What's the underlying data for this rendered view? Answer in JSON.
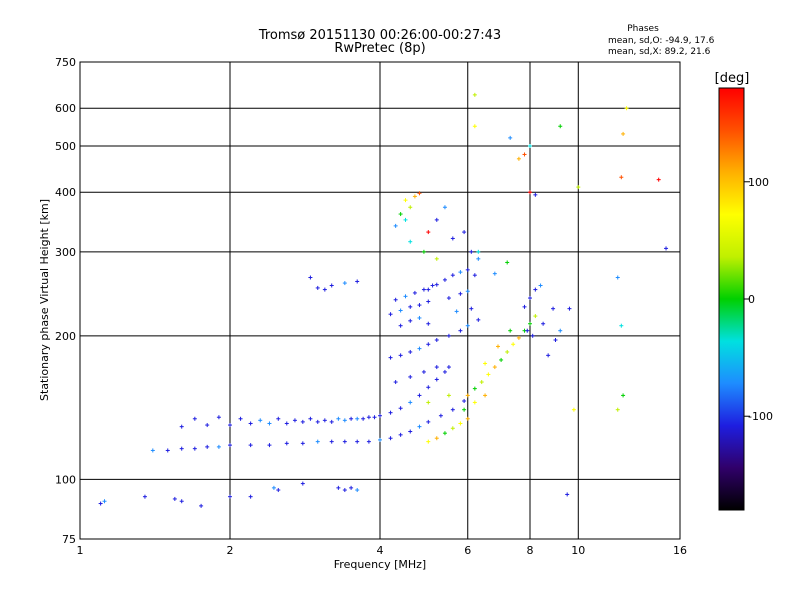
{
  "chart_data": {
    "type": "scatter",
    "title": "Tromsø 20151130 00:26:00-00:27:43",
    "subtitle": "RwPretec (8p)",
    "xlabel": "Frequency [MHz]",
    "ylabel": "Stationary phase Virtual Height [km]",
    "x_scale": "log",
    "y_scale": "log",
    "xlim": [
      1,
      16
    ],
    "ylim": [
      75,
      750
    ],
    "x_ticks": [
      1,
      2,
      4,
      6,
      8,
      10,
      16
    ],
    "y_ticks": [
      75,
      100,
      200,
      300,
      400,
      500,
      600,
      750
    ],
    "grid": true,
    "legend": "top-right",
    "stats": {
      "heading": "Phases",
      "line_o": "mean, sd,O: -94.9, 17.6",
      "line_x": "mean, sd,X:  89.2, 21.6"
    },
    "colorbar": {
      "label": "[deg]",
      "range": [
        -180,
        180
      ],
      "ticks": [
        100,
        0,
        -100
      ],
      "colors": [
        "#000000",
        "#30006a",
        "#1e1ee0",
        "#1e8cff",
        "#00e0e0",
        "#00d000",
        "#c0f000",
        "#ffff00",
        "#ffb000",
        "#ff5000",
        "#ff0000"
      ]
    },
    "series": [
      {
        "points": [
          [
            1.1,
            89
          ],
          [
            1.12,
            90
          ],
          [
            1.35,
            92
          ],
          [
            1.6,
            90
          ],
          [
            1.75,
            88
          ],
          [
            2,
            92
          ],
          [
            2.45,
            96
          ],
          [
            2.5,
            95
          ],
          [
            2.8,
            98
          ],
          [
            3.3,
            96
          ],
          [
            3.4,
            95
          ],
          [
            3.5,
            96
          ],
          [
            3.6,
            95
          ],
          [
            2.2,
            92
          ],
          [
            1.55,
            91
          ]
        ]
      },
      {
        "points": [
          [
            1.4,
            115
          ],
          [
            1.5,
            115
          ],
          [
            1.6,
            116
          ],
          [
            1.7,
            116
          ],
          [
            1.8,
            117
          ],
          [
            1.9,
            117
          ],
          [
            2,
            118
          ],
          [
            2.2,
            118
          ],
          [
            2.4,
            118
          ],
          [
            2.6,
            119
          ],
          [
            2.8,
            119
          ],
          [
            3,
            120
          ],
          [
            3.2,
            120
          ],
          [
            3.4,
            120
          ],
          [
            3.6,
            120
          ],
          [
            3.8,
            120
          ],
          [
            4,
            121
          ],
          [
            4.2,
            122
          ],
          [
            4.4,
            124
          ],
          [
            4.6,
            126
          ],
          [
            4.8,
            129
          ],
          [
            5,
            132
          ],
          [
            5.3,
            136
          ],
          [
            5.6,
            140
          ],
          [
            5.9,
            146
          ]
        ]
      },
      {
        "points": [
          [
            1.6,
            129
          ],
          [
            1.8,
            130
          ],
          [
            2,
            130
          ],
          [
            2.2,
            131
          ],
          [
            2.4,
            131
          ],
          [
            2.6,
            131
          ],
          [
            2.8,
            132
          ],
          [
            3,
            132
          ],
          [
            3.2,
            132
          ],
          [
            3.4,
            133
          ],
          [
            3.6,
            134
          ],
          [
            3.8,
            135
          ],
          [
            4,
            136
          ],
          [
            4.2,
            138
          ],
          [
            4.4,
            141
          ],
          [
            4.6,
            145
          ],
          [
            4.8,
            150
          ],
          [
            5,
            156
          ],
          [
            5.2,
            162
          ],
          [
            5.4,
            168
          ],
          [
            5.5,
            172
          ]
        ]
      },
      {
        "points": [
          [
            1.7,
            134
          ],
          [
            1.9,
            135
          ],
          [
            2.1,
            134
          ],
          [
            2.3,
            133
          ],
          [
            2.5,
            134
          ],
          [
            2.7,
            133
          ],
          [
            2.9,
            134
          ],
          [
            3.1,
            133
          ],
          [
            3.3,
            134
          ],
          [
            3.5,
            134
          ],
          [
            3.7,
            134
          ],
          [
            3.9,
            135
          ]
        ]
      },
      {
        "points": [
          [
            3.0,
            252
          ],
          [
            3.2,
            255
          ],
          [
            3.4,
            258
          ],
          [
            3.6,
            260
          ],
          [
            2.9,
            265
          ],
          [
            3.1,
            250
          ]
        ]
      },
      {
        "points": [
          [
            4.2,
            222
          ],
          [
            4.4,
            226
          ],
          [
            4.6,
            230
          ],
          [
            4.8,
            232
          ],
          [
            5.0,
            236
          ],
          [
            4.3,
            238
          ],
          [
            4.5,
            242
          ],
          [
            4.7,
            246
          ],
          [
            4.9,
            250
          ],
          [
            5.1,
            255
          ],
          [
            4.4,
            210
          ],
          [
            4.6,
            215
          ],
          [
            4.8,
            218
          ],
          [
            5.0,
            212
          ]
        ]
      },
      {
        "points": [
          [
            4.3,
            340
          ],
          [
            4.5,
            350
          ],
          [
            4.4,
            360
          ],
          [
            4.6,
            372
          ],
          [
            4.5,
            385
          ],
          [
            4.7,
            392
          ],
          [
            4.8,
            398
          ],
          [
            5.0,
            330
          ],
          [
            5.2,
            350
          ],
          [
            5.4,
            372
          ],
          [
            4.6,
            315
          ],
          [
            4.9,
            300
          ],
          [
            5.2,
            290
          ]
        ]
      },
      {
        "points": [
          [
            5.0,
            250
          ],
          [
            5.2,
            256
          ],
          [
            5.4,
            262
          ],
          [
            5.6,
            268
          ],
          [
            5.8,
            272
          ],
          [
            6.0,
            275
          ],
          [
            6.2,
            268
          ],
          [
            5.5,
            240
          ],
          [
            5.8,
            245
          ],
          [
            6.0,
            248
          ],
          [
            5.7,
            225
          ],
          [
            6.1,
            228
          ],
          [
            5.6,
            320
          ],
          [
            5.9,
            330
          ],
          [
            6.1,
            300
          ],
          [
            6.3,
            290
          ]
        ]
      },
      {
        "points": [
          [
            4.2,
            180
          ],
          [
            4.4,
            182
          ],
          [
            4.6,
            185
          ],
          [
            4.8,
            188
          ],
          [
            5.0,
            192
          ],
          [
            5.2,
            196
          ],
          [
            5.5,
            200
          ],
          [
            5.8,
            205
          ],
          [
            6.0,
            210
          ],
          [
            6.3,
            216
          ],
          [
            4.3,
            160
          ],
          [
            4.6,
            164
          ],
          [
            4.9,
            168
          ],
          [
            5.2,
            172
          ]
        ]
      },
      {
        "points": [
          [
            6.0,
            150
          ],
          [
            6.2,
            155
          ],
          [
            6.4,
            160
          ],
          [
            6.6,
            166
          ],
          [
            6.8,
            172
          ],
          [
            7.0,
            178
          ],
          [
            7.2,
            185
          ],
          [
            7.4,
            192
          ],
          [
            7.6,
            198
          ],
          [
            7.8,
            205
          ],
          [
            8.0,
            212
          ],
          [
            8.2,
            220
          ],
          [
            6.5,
            175
          ],
          [
            6.9,
            190
          ],
          [
            7.3,
            205
          ]
        ]
      },
      {
        "points": [
          [
            8.0,
            240
          ],
          [
            8.2,
            250
          ],
          [
            8.4,
            255
          ],
          [
            7.8,
            230
          ],
          [
            8.5,
            212
          ],
          [
            8.9,
            228
          ],
          [
            9.0,
            196
          ],
          [
            9.2,
            205
          ],
          [
            9.6,
            228
          ],
          [
            8.7,
            182
          ],
          [
            8.1,
            200
          ],
          [
            7.9,
            205
          ]
        ]
      },
      {
        "points": [
          [
            5.0,
            120
          ],
          [
            5.2,
            122
          ],
          [
            5.4,
            125
          ],
          [
            5.6,
            128
          ],
          [
            5.8,
            131
          ],
          [
            6.0,
            134
          ],
          [
            5.9,
            140
          ],
          [
            5.5,
            150
          ],
          [
            6.2,
            145
          ],
          [
            6.5,
            150
          ],
          [
            5.0,
            145
          ]
        ]
      },
      {
        "points": [
          [
            6.2,
            640
          ],
          [
            6.2,
            550
          ],
          [
            7.6,
            470
          ],
          [
            7.8,
            480
          ],
          [
            8.0,
            400
          ],
          [
            8.2,
            395
          ],
          [
            7.3,
            520
          ],
          [
            8.0,
            500
          ],
          [
            9.2,
            550
          ],
          [
            10,
            410
          ],
          [
            12.5,
            600
          ],
          [
            12.3,
            530
          ],
          [
            12.2,
            430
          ],
          [
            14.5,
            425
          ],
          [
            15,
            305
          ],
          [
            12.0,
            265
          ],
          [
            12.2,
            210
          ],
          [
            12.3,
            150
          ],
          [
            12.0,
            140
          ],
          [
            9.8,
            140
          ],
          [
            9.5,
            93
          ],
          [
            6.8,
            270
          ],
          [
            6.3,
            300
          ],
          [
            7.2,
            285
          ]
        ]
      }
    ]
  }
}
